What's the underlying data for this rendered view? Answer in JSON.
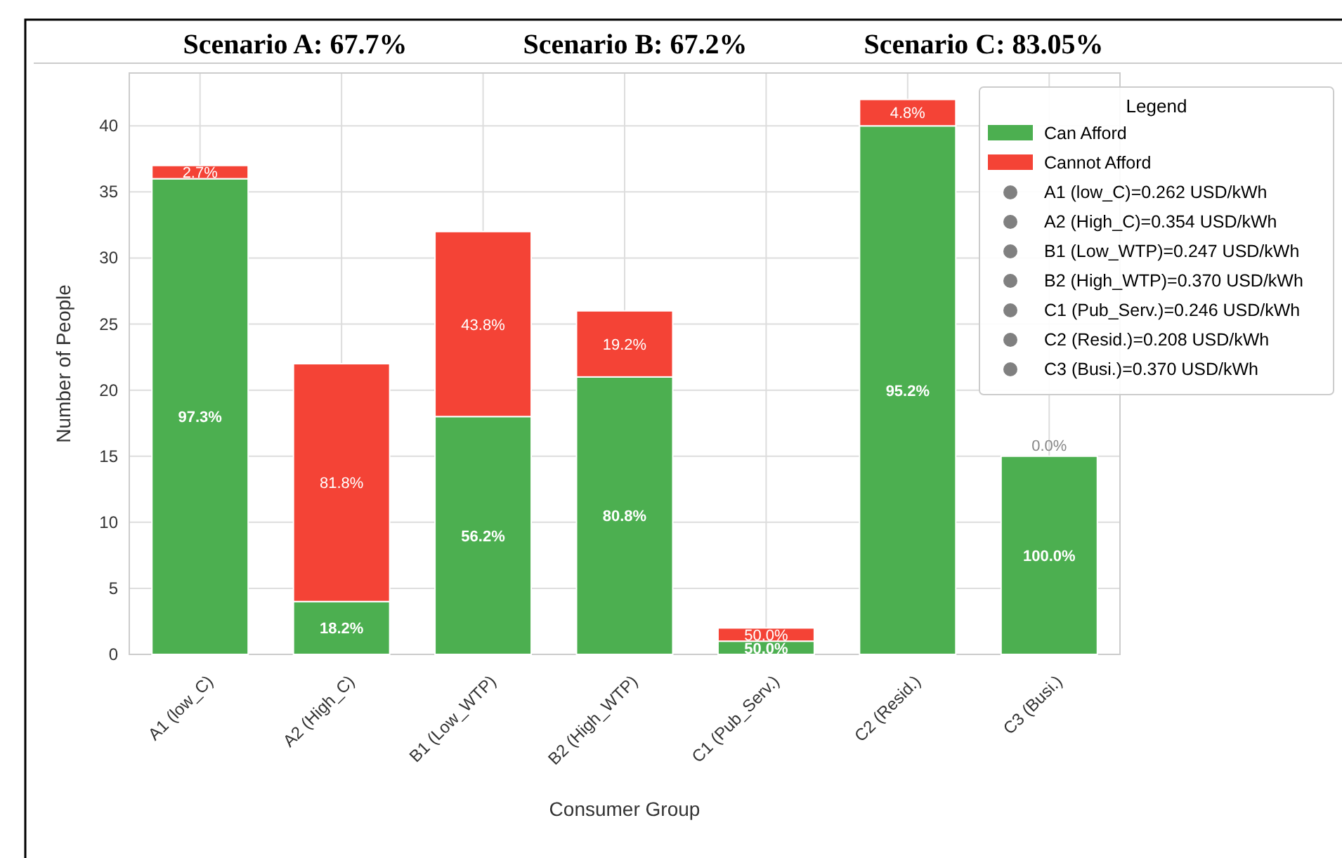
{
  "chart_data": {
    "type": "bar",
    "stacked": true,
    "xlabel": "Consumer Group",
    "ylabel": "Number of People",
    "legend_title": "Legend",
    "categories": [
      "A1 (low_C)",
      "A2 (High_C)",
      "B1 (Low_WTP)",
      "B2 (High_WTP)",
      "C1 (Pub_Serv.)",
      "C2 (Resid.)",
      "C3 (Busi.)"
    ],
    "series": [
      {
        "name": "Can Afford",
        "color": "#4caf50",
        "values": [
          36,
          4,
          18,
          21,
          1,
          40,
          15
        ]
      },
      {
        "name": "Cannot Afford",
        "color": "#f44336",
        "values": [
          1,
          18,
          14,
          5,
          1,
          2,
          0
        ]
      }
    ],
    "ylim": [
      0,
      44
    ],
    "yticks": [
      0,
      5,
      10,
      15,
      20,
      25,
      30,
      35,
      40
    ],
    "grid": true,
    "legend": "top right",
    "annotations": [
      "Scenario A: 67.7%",
      "Scenario B: 67.2%",
      "Scenario C: 83.05%",
      "A1 (low_C)=0.262 USD/kWh",
      "A2 (High_C)=0.354 USD/kWh",
      "B1 (Low_WTP)=0.247 USD/kWh",
      "B2 (High_WTP)=0.370 USD/kWh",
      "C1 (Pub_Serv.)=0.246 USD/kWh",
      "C2 (Resid.)=0.208 USD/kWh",
      "C3 (Busi.)=0.370 USD/kWh",
      "97.3%",
      "2.7%",
      "18.2%",
      "81.8%",
      "56.2%",
      "43.8%",
      "80.8%",
      "19.2%",
      "50.0%",
      "50.0%",
      "95.2%",
      "4.8%",
      "100.0%",
      "0.0%"
    ]
  }
}
